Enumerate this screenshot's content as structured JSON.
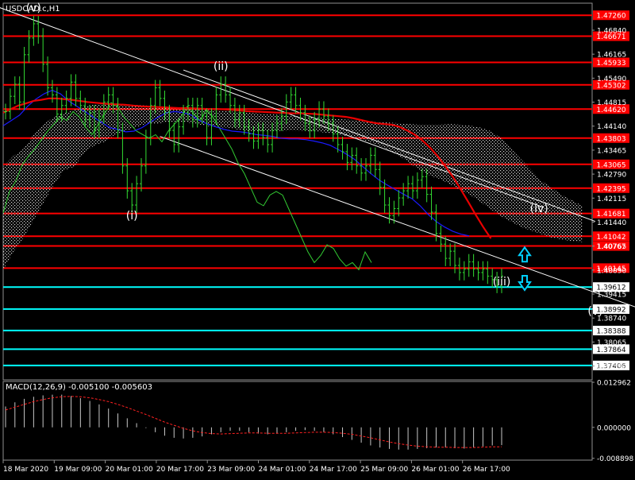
{
  "chart_data": {
    "type": "candlestick",
    "symbol_label": "USDCAD.c,H1",
    "indicator_label": "MACD(12,26,9) -0.005100 -0.005603",
    "price_axis": {
      "ylim": [
        1.37,
        1.476
      ],
      "ticks": [
        "1.46840",
        "1.46165",
        "1.45490",
        "1.44815",
        "1.44140",
        "1.43465",
        "1.42790",
        "1.42115",
        "1.41440",
        "1.40765",
        "1.40090",
        "1.39415",
        "1.38740",
        "1.38065",
        "1.37390"
      ]
    },
    "macd_axis": {
      "ylim": [
        -0.0092,
        0.0132
      ],
      "ticks": [
        "0.012962",
        "0.000000",
        "-0.008898"
      ]
    },
    "time_labels": [
      "18 Mar 2020",
      "19 Mar 09:00",
      "20 Mar 01:00",
      "20 Mar 17:00",
      "23 Mar 09:00",
      "24 Mar 01:00",
      "24 Mar 17:00",
      "25 Mar 09:00",
      "26 Mar 01:00",
      "26 Mar 17:00"
    ],
    "resistance_levels": [
      "1.47260",
      "1.46671",
      "1.45933",
      "1.45302",
      "1.44620",
      "1.43803",
      "1.43065",
      "1.42395",
      "1.41681",
      "1.41042",
      "1.40767",
      "1.40145"
    ],
    "support_levels": [
      "1.39612",
      "1.38992",
      "1.38388",
      "1.37864",
      "1.37406"
    ],
    "wave_labels": [
      "(v)",
      "(i)",
      "(ii)",
      "(iii)",
      "(iv)",
      "(v)"
    ],
    "wave_points": [
      {
        "label_index": 0,
        "bar": 6,
        "price": 1.4737
      },
      {
        "label_index": 1,
        "bar": 27,
        "price": 1.4152
      },
      {
        "label_index": 2,
        "bar": 46,
        "price": 1.4572
      },
      {
        "label_index": 3,
        "bar": 106,
        "price": 1.3966
      },
      {
        "label_index": 4,
        "bar": 114,
        "price": 1.4172
      },
      {
        "label_index": 5,
        "bar": 126,
        "price": 1.3883
      }
    ],
    "close": [
      1.4455,
      1.4498,
      1.4532,
      1.4482,
      1.4615,
      1.4662,
      1.4702,
      1.4668,
      1.4588,
      1.4522,
      1.4502,
      1.4448,
      1.4472,
      1.4492,
      1.4538,
      1.4492,
      1.4472,
      1.4432,
      1.4452,
      1.4402,
      1.4442,
      1.4482,
      1.4502,
      1.4472,
      1.4402,
      1.4302,
      1.4232,
      1.4192,
      1.4252,
      1.4302,
      1.4382,
      1.4472,
      1.4522,
      1.4492,
      1.4452,
      1.4402,
      1.4362,
      1.4412,
      1.4452,
      1.4472,
      1.4432,
      1.4472,
      1.4442,
      1.4382,
      1.4442,
      1.4502,
      1.4532,
      1.4502,
      1.4472,
      1.4432,
      1.4452,
      1.4412,
      1.4392,
      1.4372,
      1.4402,
      1.4382,
      1.4362,
      1.4402,
      1.4422,
      1.4442,
      1.4482,
      1.4502,
      1.4472,
      1.4452,
      1.4422,
      1.4402,
      1.4432,
      1.4462,
      1.4442,
      1.4422,
      1.4392,
      1.4362,
      1.4342,
      1.4312,
      1.4332,
      1.4302,
      1.4282,
      1.4302,
      1.4332,
      1.4292,
      1.4242,
      1.4192,
      1.4162,
      1.4182,
      1.4212,
      1.4232,
      1.4252,
      1.4232,
      1.4262,
      1.4272,
      1.4222,
      1.4172,
      1.4112,
      1.4082,
      1.4042,
      1.4062,
      1.4022,
      1.4002,
      1.4012,
      1.4032,
      1.4012,
      1.4002,
      1.4012,
      1.3992,
      1.3982,
      1.3966,
      1.3992
    ],
    "ema_red": [
      1.4452,
      1.4462,
      1.4472,
      1.4478,
      1.4485,
      1.4488,
      1.4492,
      1.4492,
      1.449,
      1.4488,
      1.4485,
      1.4482,
      1.448,
      1.4478,
      1.4476,
      1.4475,
      1.4474,
      1.4472,
      1.447,
      1.4469,
      1.4468,
      1.4467,
      1.4466,
      1.4465,
      1.4465,
      1.4464,
      1.4463,
      1.4462,
      1.4462,
      1.4461,
      1.446,
      1.4458,
      1.4456,
      1.4455,
      1.4454,
      1.4453,
      1.4452,
      1.4451,
      1.445,
      1.445,
      1.4449,
      1.4448,
      1.4446,
      1.4444,
      1.4442,
      1.444,
      1.4436,
      1.4431,
      1.4426,
      1.4422,
      1.442,
      1.4418,
      1.4412,
      1.4402,
      1.439,
      1.4374,
      1.4354,
      1.433,
      1.4302,
      1.4272,
      1.4238,
      1.4202,
      1.4165,
      1.413,
      1.4098
    ],
    "ema_blue": [
      1.4415,
      1.443,
      1.4445,
      1.447,
      1.449,
      1.4505,
      1.4515,
      1.4505,
      1.4485,
      1.447,
      1.4455,
      1.444,
      1.4425,
      1.441,
      1.4405,
      1.4398,
      1.44,
      1.441,
      1.4425,
      1.444,
      1.4452,
      1.4455,
      1.4452,
      1.4445,
      1.443,
      1.442,
      1.4412,
      1.4405,
      1.44,
      1.4398,
      1.4395,
      1.439,
      1.4388,
      1.4385,
      1.438,
      1.4378,
      1.4378,
      1.4376,
      1.4372,
      1.4367,
      1.436,
      1.4348,
      1.4335,
      1.432,
      1.43,
      1.428,
      1.4262,
      1.4248,
      1.4235,
      1.4222,
      1.421,
      1.419,
      1.4165,
      1.4145,
      1.413,
      1.4118,
      1.411,
      1.4105
    ],
    "lagging_green": [
      1.417,
      1.423,
      1.426,
      1.4305,
      1.433,
      1.435,
      1.4375,
      1.44,
      1.442,
      1.444,
      1.443,
      1.4455,
      1.444,
      1.441,
      1.439,
      1.442,
      1.445,
      1.448,
      1.447,
      1.444,
      1.442,
      1.44,
      1.439,
      1.438,
      1.439,
      1.437,
      1.44,
      1.442,
      1.444,
      1.447,
      1.445,
      1.443,
      1.446,
      1.444,
      1.441,
      1.438,
      1.435,
      1.431,
      1.428,
      1.424,
      1.42,
      1.419,
      1.422,
      1.423,
      1.422,
      1.418,
      1.414,
      1.41,
      1.406,
      1.403,
      1.405,
      1.408,
      1.407,
      1.404,
      1.402,
      1.403,
      1.401,
      1.406,
      1.403
    ],
    "cloud_top": [
      1.43,
      1.433,
      1.435,
      1.439,
      1.442,
      1.444,
      1.445,
      1.446,
      1.447,
      1.4475,
      1.4478,
      1.4478,
      1.4476,
      1.4474,
      1.4472,
      1.447,
      1.4468,
      1.4466,
      1.4464,
      1.4462,
      1.446,
      1.4458,
      1.4456,
      1.4454,
      1.4452,
      1.445,
      1.4448,
      1.4446,
      1.4444,
      1.4442,
      1.444,
      1.4438,
      1.4436,
      1.4434,
      1.4432,
      1.443,
      1.4428,
      1.4426,
      1.4424,
      1.4422,
      1.442,
      1.4418,
      1.4418,
      1.4418,
      1.442,
      1.4418,
      1.4415,
      1.441,
      1.44,
      1.438,
      1.435,
      1.432,
      1.429,
      1.426,
      1.424,
      1.422,
      1.4205,
      1.419
    ],
    "cloud_bottom": [
      1.401,
      1.406,
      1.41,
      1.415,
      1.42,
      1.425,
      1.429,
      1.43,
      1.434,
      1.436,
      1.437,
      1.439,
      1.44,
      1.441,
      1.442,
      1.442,
      1.4425,
      1.4425,
      1.4425,
      1.442,
      1.4415,
      1.441,
      1.441,
      1.4405,
      1.44,
      1.44,
      1.44,
      1.44,
      1.4402,
      1.4402,
      1.44,
      1.4398,
      1.4395,
      1.439,
      1.4385,
      1.4378,
      1.437,
      1.436,
      1.4345,
      1.433,
      1.431,
      1.429,
      1.4275,
      1.4265,
      1.425,
      1.4235,
      1.422,
      1.42,
      1.418,
      1.416,
      1.4145,
      1.413,
      1.412,
      1.411,
      1.41,
      1.4095,
      1.409,
      1.4088
    ],
    "macd_hist": [
      0.006,
      0.0072,
      0.0082,
      0.0088,
      0.0092,
      0.0094,
      0.0094,
      0.009,
      0.0084,
      0.0076,
      0.0066,
      0.0054,
      0.004,
      0.0026,
      0.0012,
      -0.0002,
      -0.0014,
      -0.0024,
      -0.003,
      -0.0032,
      -0.003,
      -0.0026,
      -0.002,
      -0.0014,
      -0.001,
      -0.001,
      -0.0014,
      -0.0018,
      -0.002,
      -0.0018,
      -0.0014,
      -0.001,
      -0.0008,
      -0.001,
      -0.0014,
      -0.002,
      -0.0028,
      -0.0036,
      -0.0044,
      -0.0052,
      -0.0058,
      -0.0062,
      -0.0064,
      -0.0064,
      -0.0062,
      -0.006,
      -0.0058,
      -0.0058,
      -0.006,
      -0.0061,
      -0.0058,
      -0.0055,
      -0.0052,
      -0.0051
    ],
    "macd_signal": [
      0.005,
      0.0058,
      0.0066,
      0.0074,
      0.008,
      0.0085,
      0.0088,
      0.0089,
      0.0088,
      0.0085,
      0.008,
      0.0074,
      0.0066,
      0.0057,
      0.0047,
      0.0037,
      0.0026,
      0.0015,
      0.0006,
      -0.0003,
      -0.001,
      -0.0015,
      -0.0018,
      -0.0019,
      -0.0018,
      -0.0017,
      -0.0016,
      -0.0016,
      -0.0017,
      -0.0017,
      -0.0017,
      -0.0016,
      -0.0015,
      -0.0014,
      -0.0014,
      -0.0015,
      -0.0017,
      -0.002,
      -0.0025,
      -0.003,
      -0.0036,
      -0.0042,
      -0.0047,
      -0.0051,
      -0.0054,
      -0.0056,
      -0.0057,
      -0.0057,
      -0.0058,
      -0.0058,
      -0.0058,
      -0.0057,
      -0.0056,
      -0.0056
    ]
  }
}
